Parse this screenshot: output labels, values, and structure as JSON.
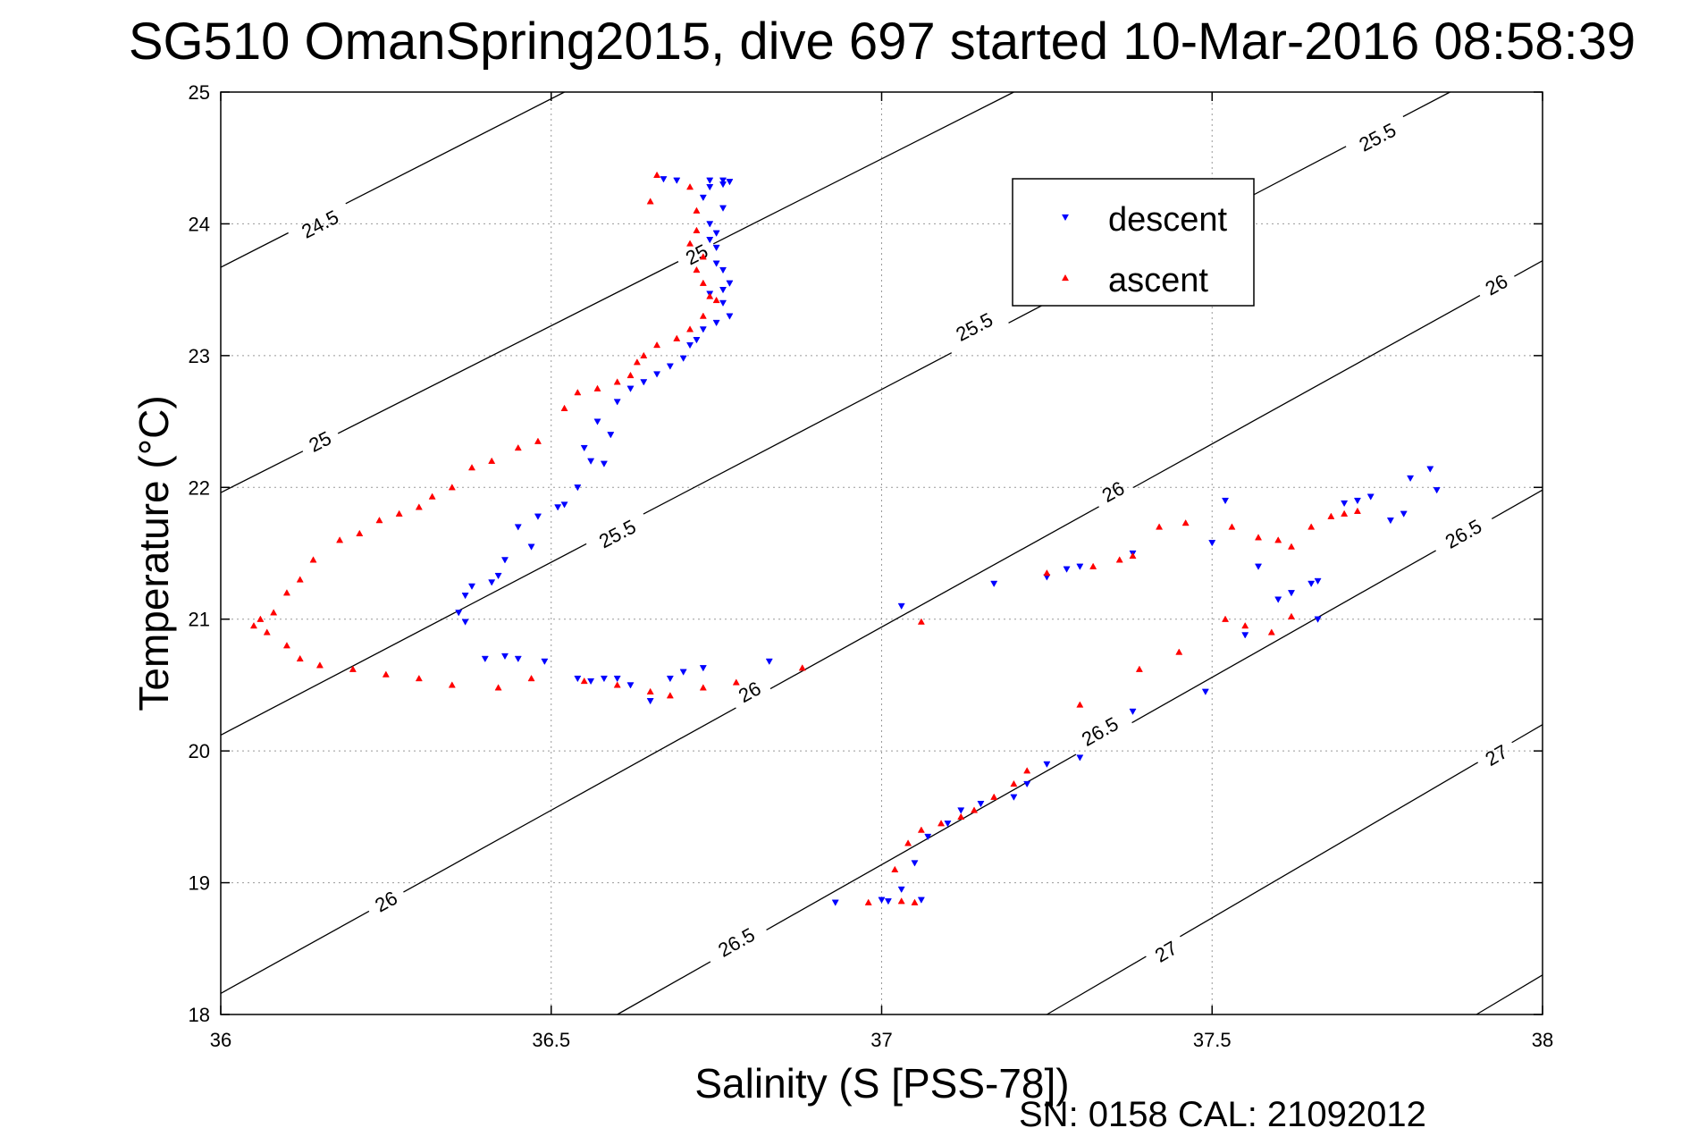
{
  "chart_data": {
    "type": "scatter",
    "title": "SG510 OmanSpring2015, dive 697 started 10-Mar-2016 08:58:39",
    "xlabel": "Salinity (S [PSS-78])",
    "ylabel": "Temperature (°C)",
    "footer": "SN: 0158  CAL: 21092012",
    "xlim": [
      36,
      38
    ],
    "ylim": [
      18,
      25
    ],
    "xticks": [
      "36",
      "36.5",
      "37",
      "37.5",
      "38"
    ],
    "yticks": [
      "18",
      "19",
      "20",
      "21",
      "22",
      "23",
      "24",
      "25"
    ],
    "grid": true,
    "legend_position": "top-right",
    "colors": {
      "descent": "#0000ff",
      "ascent": "#ff0000",
      "contour": "#000000",
      "grid": "#999999"
    },
    "series": [
      {
        "name": "descent",
        "marker": "triangle-down",
        "points": [
          [
            36.67,
            24.34
          ],
          [
            36.69,
            24.33
          ],
          [
            36.74,
            24.33
          ],
          [
            36.76,
            24.33
          ],
          [
            36.77,
            24.32
          ],
          [
            36.74,
            24.28
          ],
          [
            36.76,
            24.3
          ],
          [
            36.73,
            24.2
          ],
          [
            36.76,
            24.12
          ],
          [
            36.74,
            24.0
          ],
          [
            36.75,
            23.93
          ],
          [
            36.74,
            23.88
          ],
          [
            36.75,
            23.82
          ],
          [
            36.75,
            23.7
          ],
          [
            36.76,
            23.65
          ],
          [
            36.77,
            23.55
          ],
          [
            36.76,
            23.5
          ],
          [
            36.74,
            23.47
          ],
          [
            36.76,
            23.4
          ],
          [
            36.77,
            23.3
          ],
          [
            36.75,
            23.25
          ],
          [
            36.73,
            23.2
          ],
          [
            36.72,
            23.12
          ],
          [
            36.71,
            23.08
          ],
          [
            36.7,
            22.98
          ],
          [
            36.68,
            22.92
          ],
          [
            36.66,
            22.86
          ],
          [
            36.64,
            22.8
          ],
          [
            36.62,
            22.75
          ],
          [
            36.6,
            22.65
          ],
          [
            36.57,
            22.5
          ],
          [
            36.59,
            22.4
          ],
          [
            36.55,
            22.3
          ],
          [
            36.56,
            22.2
          ],
          [
            36.58,
            22.18
          ],
          [
            36.54,
            22.0
          ],
          [
            36.52,
            21.87
          ],
          [
            36.51,
            21.85
          ],
          [
            36.48,
            21.78
          ],
          [
            36.45,
            21.7
          ],
          [
            36.47,
            21.55
          ],
          [
            36.43,
            21.45
          ],
          [
            36.42,
            21.33
          ],
          [
            36.41,
            21.28
          ],
          [
            36.38,
            21.25
          ],
          [
            36.37,
            21.18
          ],
          [
            36.36,
            21.05
          ],
          [
            36.37,
            20.98
          ],
          [
            36.4,
            20.7
          ],
          [
            36.43,
            20.72
          ],
          [
            36.45,
            20.7
          ],
          [
            36.49,
            20.68
          ],
          [
            36.54,
            20.55
          ],
          [
            36.56,
            20.53
          ],
          [
            36.58,
            20.55
          ],
          [
            36.6,
            20.55
          ],
          [
            36.62,
            20.5
          ],
          [
            36.65,
            20.38
          ],
          [
            36.68,
            20.55
          ],
          [
            36.7,
            20.6
          ],
          [
            36.73,
            20.63
          ],
          [
            36.83,
            20.68
          ],
          [
            37.03,
            21.1
          ],
          [
            37.17,
            21.27
          ],
          [
            37.25,
            21.32
          ],
          [
            37.28,
            21.38
          ],
          [
            37.3,
            21.4
          ],
          [
            37.38,
            21.5
          ],
          [
            37.5,
            21.58
          ],
          [
            37.49,
            20.45
          ],
          [
            37.52,
            21.9
          ],
          [
            37.57,
            21.4
          ],
          [
            37.6,
            21.15
          ],
          [
            37.62,
            21.2
          ],
          [
            37.65,
            21.27
          ],
          [
            37.66,
            21.29
          ],
          [
            37.7,
            21.88
          ],
          [
            37.72,
            21.9
          ],
          [
            37.74,
            21.93
          ],
          [
            37.77,
            21.75
          ],
          [
            37.79,
            21.8
          ],
          [
            37.8,
            22.07
          ],
          [
            37.83,
            22.14
          ],
          [
            37.84,
            21.98
          ],
          [
            37.66,
            21.0
          ],
          [
            37.55,
            20.88
          ],
          [
            37.38,
            20.3
          ],
          [
            37.3,
            19.95
          ],
          [
            37.25,
            19.9
          ],
          [
            37.22,
            19.75
          ],
          [
            37.2,
            19.65
          ],
          [
            37.15,
            19.6
          ],
          [
            37.12,
            19.55
          ],
          [
            37.1,
            19.45
          ],
          [
            37.07,
            19.35
          ],
          [
            37.05,
            19.15
          ],
          [
            37.03,
            18.95
          ],
          [
            37.0,
            18.87
          ],
          [
            37.01,
            18.86
          ],
          [
            36.93,
            18.85
          ],
          [
            37.06,
            18.87
          ]
        ]
      },
      {
        "name": "ascent",
        "marker": "triangle-up",
        "points": [
          [
            36.66,
            24.37
          ],
          [
            36.71,
            24.28
          ],
          [
            36.65,
            24.17
          ],
          [
            36.72,
            24.1
          ],
          [
            36.72,
            23.95
          ],
          [
            36.71,
            23.85
          ],
          [
            36.73,
            23.75
          ],
          [
            36.72,
            23.65
          ],
          [
            36.73,
            23.55
          ],
          [
            36.74,
            23.45
          ],
          [
            36.75,
            23.42
          ],
          [
            36.73,
            23.3
          ],
          [
            36.71,
            23.2
          ],
          [
            36.69,
            23.13
          ],
          [
            36.66,
            23.08
          ],
          [
            36.64,
            23.0
          ],
          [
            36.63,
            22.95
          ],
          [
            36.62,
            22.85
          ],
          [
            36.6,
            22.8
          ],
          [
            36.57,
            22.75
          ],
          [
            36.54,
            22.72
          ],
          [
            36.52,
            22.6
          ],
          [
            36.48,
            22.35
          ],
          [
            36.45,
            22.3
          ],
          [
            36.41,
            22.2
          ],
          [
            36.38,
            22.15
          ],
          [
            36.35,
            22.0
          ],
          [
            36.32,
            21.93
          ],
          [
            36.3,
            21.85
          ],
          [
            36.27,
            21.8
          ],
          [
            36.24,
            21.75
          ],
          [
            36.21,
            21.65
          ],
          [
            36.18,
            21.6
          ],
          [
            36.14,
            21.45
          ],
          [
            36.12,
            21.3
          ],
          [
            36.1,
            21.2
          ],
          [
            36.08,
            21.05
          ],
          [
            36.06,
            21.0
          ],
          [
            36.05,
            20.95
          ],
          [
            36.07,
            20.9
          ],
          [
            36.1,
            20.8
          ],
          [
            36.12,
            20.7
          ],
          [
            36.15,
            20.65
          ],
          [
            36.2,
            20.62
          ],
          [
            36.25,
            20.58
          ],
          [
            36.3,
            20.55
          ],
          [
            36.35,
            20.5
          ],
          [
            36.42,
            20.48
          ],
          [
            36.47,
            20.55
          ],
          [
            36.55,
            20.53
          ],
          [
            36.6,
            20.5
          ],
          [
            36.65,
            20.45
          ],
          [
            36.68,
            20.42
          ],
          [
            36.73,
            20.48
          ],
          [
            36.78,
            20.52
          ],
          [
            36.88,
            20.63
          ],
          [
            37.06,
            20.98
          ],
          [
            37.25,
            21.35
          ],
          [
            37.32,
            21.4
          ],
          [
            37.36,
            21.45
          ],
          [
            37.38,
            21.48
          ],
          [
            37.42,
            21.7
          ],
          [
            37.46,
            21.73
          ],
          [
            37.53,
            21.7
          ],
          [
            37.57,
            21.62
          ],
          [
            37.6,
            21.6
          ],
          [
            37.62,
            21.55
          ],
          [
            37.65,
            21.7
          ],
          [
            37.68,
            21.78
          ],
          [
            37.7,
            21.8
          ],
          [
            37.72,
            21.82
          ],
          [
            37.52,
            21.0
          ],
          [
            37.55,
            20.95
          ],
          [
            37.59,
            20.9
          ],
          [
            37.62,
            21.02
          ],
          [
            37.45,
            20.75
          ],
          [
            37.39,
            20.62
          ],
          [
            37.3,
            20.35
          ],
          [
            37.22,
            19.85
          ],
          [
            37.2,
            19.75
          ],
          [
            37.17,
            19.65
          ],
          [
            37.14,
            19.55
          ],
          [
            37.12,
            19.5
          ],
          [
            37.09,
            19.45
          ],
          [
            37.06,
            19.4
          ],
          [
            37.04,
            19.3
          ],
          [
            37.02,
            19.1
          ],
          [
            36.98,
            18.85
          ],
          [
            37.03,
            18.86
          ],
          [
            37.05,
            18.85
          ]
        ]
      }
    ],
    "contours": [
      {
        "label": "24.5",
        "p1": [
          36.0,
          23.67
        ],
        "p2": [
          36.52,
          25.0
        ],
        "labels_at": [
          [
            36.15,
            24.0
          ]
        ]
      },
      {
        "label": "25",
        "p1": [
          36.0,
          21.96
        ],
        "p2": [
          37.2,
          25.0
        ],
        "labels_at": [
          [
            36.15,
            22.35
          ],
          [
            36.72,
            23.77
          ]
        ]
      },
      {
        "label": "25.5",
        "p1": [
          36.0,
          20.12
        ],
        "p2": [
          37.86,
          25.0
        ],
        "labels_at": [
          [
            36.6,
            21.65
          ],
          [
            37.14,
            23.22
          ],
          [
            37.75,
            24.66
          ]
        ]
      },
      {
        "label": "26",
        "p1": [
          36.0,
          18.16
        ],
        "p2": [
          38.0,
          23.72
        ],
        "labels_at": [
          [
            36.25,
            18.86
          ],
          [
            36.8,
            20.45
          ],
          [
            37.35,
            21.97
          ],
          [
            37.93,
            23.54
          ]
        ]
      },
      {
        "label": "26.5",
        "p1": [
          36.6,
          18.0
        ],
        "p2": [
          38.0,
          21.98
        ],
        "labels_at": [
          [
            36.78,
            18.55
          ],
          [
            37.33,
            20.15
          ],
          [
            37.88,
            21.65
          ]
        ]
      },
      {
        "label": "27",
        "p1": [
          37.25,
          18.0
        ],
        "p2": [
          38.0,
          20.2
        ],
        "labels_at": [
          [
            37.43,
            18.48
          ],
          [
            37.93,
            19.97
          ]
        ]
      },
      {
        "label": "",
        "p1": [
          37.9,
          18.0
        ],
        "p2": [
          38.0,
          18.3
        ],
        "labels_at": []
      }
    ]
  }
}
